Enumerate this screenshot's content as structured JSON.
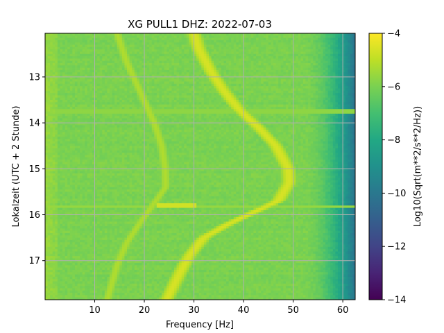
{
  "chart_data": {
    "type": "heatmap",
    "title": "XG PULL1  DHZ: 2022-07-03",
    "xlabel": "Frequency [Hz]",
    "ylabel": "Lokalzeit (UTC + 2 Stunde)",
    "xlim": [
      0,
      62.5
    ],
    "ylim": [
      17.85,
      12.05
    ],
    "y_inverted": true,
    "x_ticks": [
      10,
      20,
      30,
      40,
      50,
      60
    ],
    "y_ticks": [
      13,
      14,
      15,
      16,
      17
    ],
    "grid": true,
    "colormap": "viridis",
    "colorbar": {
      "label": "Log10(Sqrt(m**2/s**2/Hz))",
      "range": [
        -14,
        -4
      ],
      "ticks": [
        -14,
        -12,
        -10,
        -8,
        -6,
        -4
      ]
    },
    "background_level": -6.0,
    "features": [
      {
        "name": "main-tone",
        "level": -4.6,
        "points": [
          [
            30.0,
            12.05
          ],
          [
            31.0,
            12.4
          ],
          [
            33.5,
            12.9
          ],
          [
            36.0,
            13.3
          ],
          [
            39.0,
            13.7
          ],
          [
            43.0,
            14.1
          ],
          [
            46.5,
            14.5
          ],
          [
            49.0,
            15.0
          ],
          [
            49.2,
            15.3
          ],
          [
            47.0,
            15.7
          ],
          [
            42.0,
            15.95
          ],
          [
            37.0,
            16.2
          ],
          [
            32.0,
            16.5
          ],
          [
            29.0,
            16.9
          ],
          [
            27.0,
            17.3
          ],
          [
            24.5,
            17.85
          ]
        ]
      },
      {
        "name": "secondary-tone",
        "level": -5.2,
        "points": [
          [
            14.5,
            12.05
          ],
          [
            16.5,
            12.7
          ],
          [
            19.5,
            13.4
          ],
          [
            22.0,
            14.0
          ],
          [
            23.5,
            14.5
          ],
          [
            24.2,
            15.0
          ],
          [
            24.3,
            15.4
          ],
          [
            22.0,
            15.75
          ],
          [
            19.0,
            16.2
          ],
          [
            16.5,
            16.6
          ],
          [
            14.5,
            17.1
          ],
          [
            12.5,
            17.85
          ]
        ]
      }
    ],
    "horizontal_lines": [
      {
        "y": 15.8,
        "x_range": [
          22.5,
          30.5
        ],
        "level": -4.7
      },
      {
        "y": 15.82,
        "x_range": [
          0,
          62.5
        ],
        "level": -5.6
      },
      {
        "y": 13.76,
        "x_range": [
          0,
          62.5
        ],
        "level": -5.7
      }
    ]
  }
}
